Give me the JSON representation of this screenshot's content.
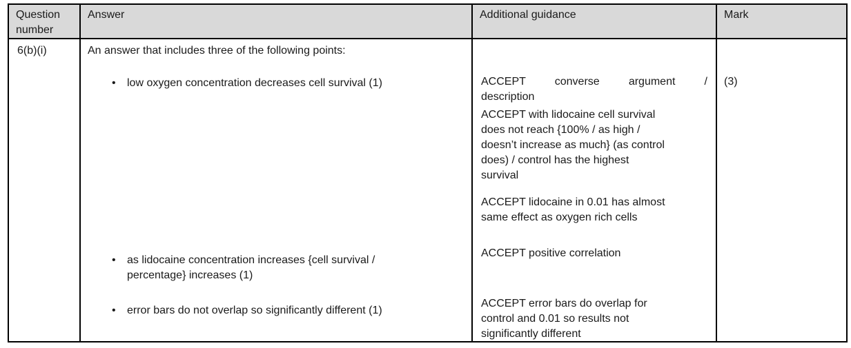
{
  "colors": {
    "page_bg": "#ffffff",
    "header_bg": "#d9d9d9",
    "border": "#000000",
    "text": "#1a1a1a"
  },
  "table": {
    "headers": [
      "Question number",
      "Answer",
      "Additional guidance",
      "Mark"
    ],
    "row": {
      "question_number": "6(b)(i)",
      "answer": {
        "intro": "An answer that includes three of the following points:",
        "bullets": [
          {
            "lines": [
              "low oxygen concentration decreases cell survival (1)"
            ]
          },
          {
            "lines": [
              "as lidocaine concentration increases {cell survival /",
              "percentage} increases (1)"
            ]
          },
          {
            "lines": [
              "error bars do not overlap so significantly different (1)"
            ]
          }
        ]
      },
      "guidance": [
        {
          "lines": [
            "ACCEPT converse argument /",
            "description"
          ]
        },
        {
          "lines": [
            "ACCEPT with lidocaine cell survival",
            "does not reach {100% / as high /",
            "doesn’t increase as much} (as control",
            "does) / control has the highest",
            "survival"
          ]
        },
        {
          "lines": [
            "ACCEPT lidocaine in 0.01 has almost",
            "same effect as oxygen rich cells"
          ]
        },
        {
          "lines": [
            "ACCEPT positive correlation"
          ]
        },
        {
          "lines": [
            "ACCEPT error bars do overlap for",
            "control and 0.01 so results not",
            "significantly different"
          ]
        }
      ],
      "mark": "(3)"
    }
  }
}
